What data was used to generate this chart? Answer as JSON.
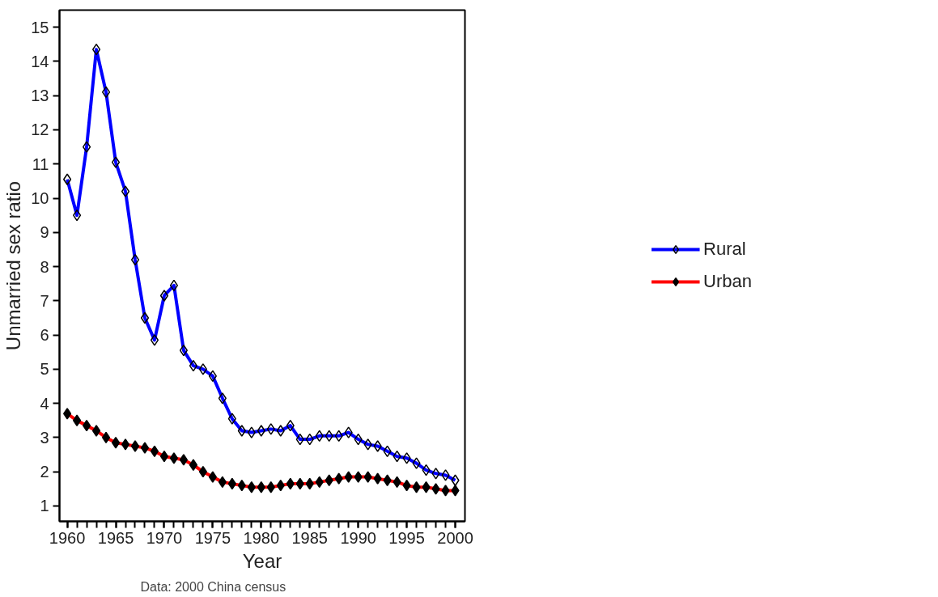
{
  "chart_data": {
    "type": "line",
    "xlabel": "Year",
    "ylabel": "Unmarried sex ratio",
    "x": [
      1960,
      1961,
      1962,
      1963,
      1964,
      1965,
      1966,
      1967,
      1968,
      1969,
      1970,
      1971,
      1972,
      1973,
      1974,
      1975,
      1976,
      1977,
      1978,
      1979,
      1980,
      1981,
      1982,
      1983,
      1984,
      1985,
      1986,
      1987,
      1988,
      1989,
      1990,
      1991,
      1992,
      1993,
      1994,
      1995,
      1996,
      1997,
      1998,
      1999,
      2000
    ],
    "series": [
      {
        "name": "Rural",
        "color": "#0000ff",
        "values": [
          10.55,
          9.5,
          11.5,
          14.35,
          13.1,
          11.05,
          10.2,
          8.2,
          6.5,
          5.85,
          7.15,
          7.45,
          5.55,
          5.1,
          5.0,
          4.8,
          4.15,
          3.55,
          3.2,
          3.15,
          3.2,
          3.25,
          3.2,
          3.35,
          2.95,
          2.95,
          3.05,
          3.05,
          3.05,
          3.15,
          2.95,
          2.8,
          2.75,
          2.6,
          2.45,
          2.4,
          2.25,
          2.05,
          1.95,
          1.9,
          1.75
        ]
      },
      {
        "name": "Urban",
        "color": "#ff0000",
        "values": [
          3.7,
          3.5,
          3.35,
          3.2,
          3.0,
          2.85,
          2.8,
          2.75,
          2.7,
          2.6,
          2.45,
          2.4,
          2.35,
          2.2,
          2.0,
          1.85,
          1.7,
          1.65,
          1.6,
          1.55,
          1.55,
          1.55,
          1.6,
          1.65,
          1.65,
          1.65,
          1.7,
          1.75,
          1.8,
          1.85,
          1.85,
          1.85,
          1.8,
          1.75,
          1.7,
          1.6,
          1.55,
          1.55,
          1.5,
          1.45,
          1.45
        ]
      }
    ],
    "xlim": [
      1959.2,
      2001
    ],
    "xticks": [
      1960,
      1965,
      1970,
      1975,
      1980,
      1985,
      1990,
      1995,
      2000
    ],
    "ylim": [
      0.55,
      15.5
    ],
    "yticks": [
      1,
      2,
      3,
      4,
      5,
      6,
      7,
      8,
      9,
      10,
      11,
      12,
      13,
      14,
      15
    ],
    "annotations": [
      "Data: 2000 China census"
    ],
    "grid": false,
    "legend": "right",
    "marker": "diamond",
    "line_style": "solid"
  }
}
